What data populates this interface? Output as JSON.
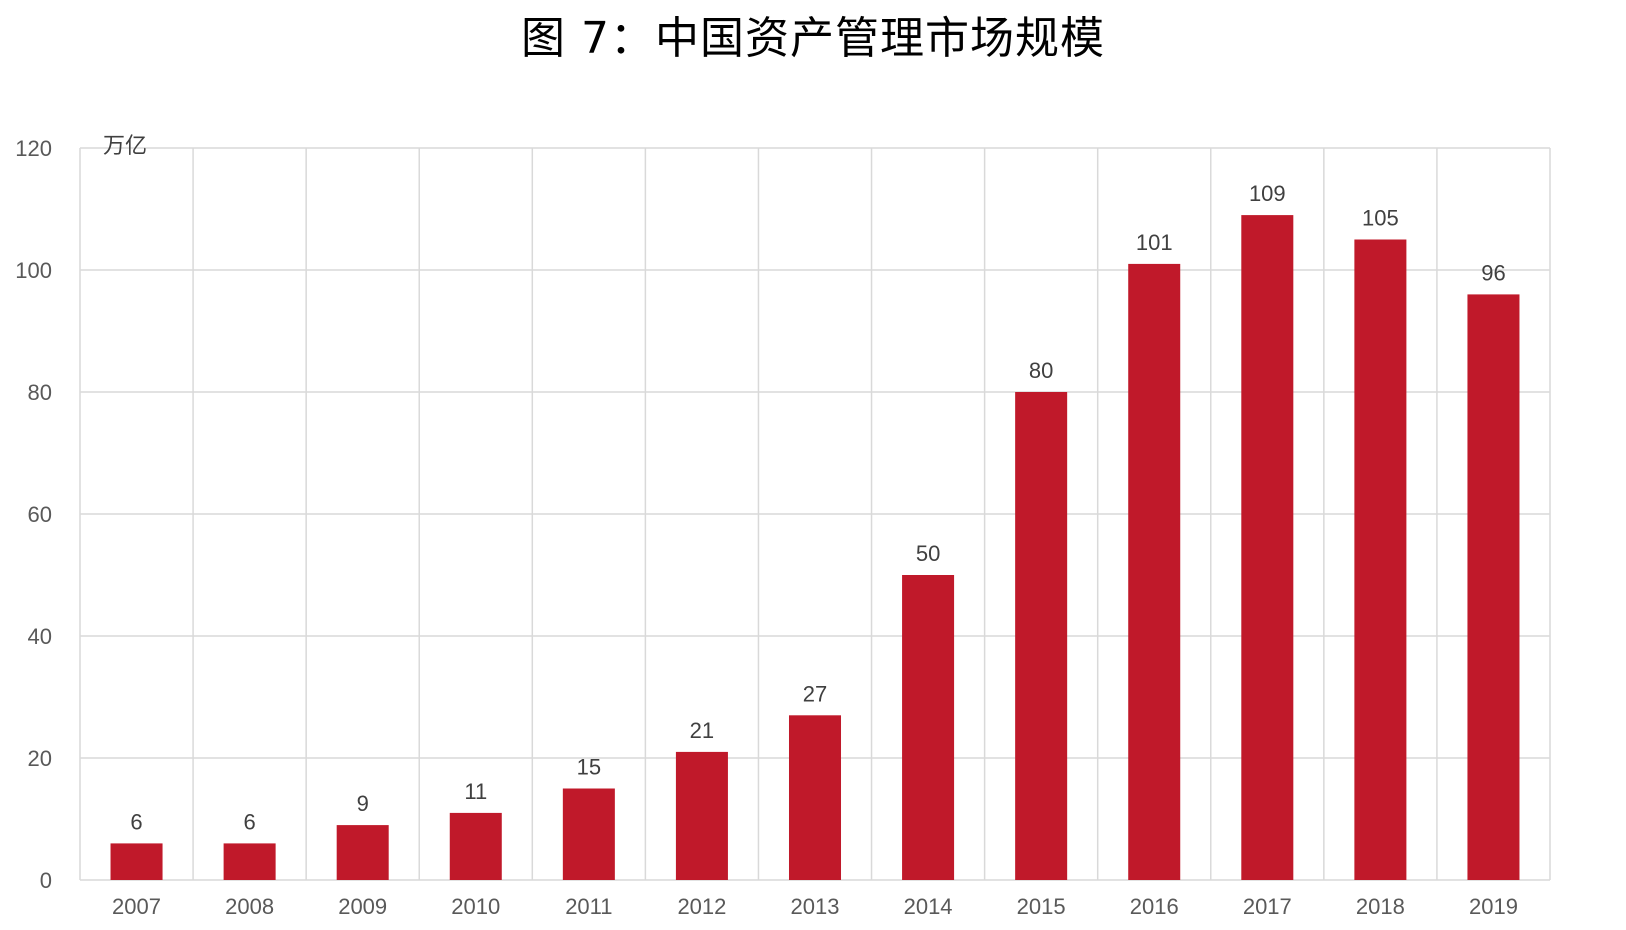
{
  "title": "图 7：中国资产管理市场规模",
  "colors": {
    "bar": "#c0192a",
    "grid": "#d9d9d9",
    "axis_text": "#595959"
  },
  "chart_data": {
    "type": "bar",
    "title": "图 7：中国资产管理市场规模",
    "unit": "万亿",
    "xlabel": "",
    "ylabel": "",
    "categories": [
      "2007",
      "2008",
      "2009",
      "2010",
      "2011",
      "2012",
      "2013",
      "2014",
      "2015",
      "2016",
      "2017",
      "2018",
      "2019"
    ],
    "values": [
      6,
      6,
      9,
      11,
      15,
      21,
      27,
      50,
      80,
      101,
      109,
      105,
      96
    ],
    "data_labels": [
      "6",
      "6",
      "9",
      "11",
      "15",
      "21",
      "27",
      "50",
      "80",
      "101",
      "109",
      "105",
      "96"
    ],
    "ylim": [
      0,
      120
    ],
    "yticks": [
      0,
      20,
      40,
      60,
      80,
      100,
      120
    ],
    "ytick_labels": [
      "0",
      "20",
      "40",
      "60",
      "80",
      "100",
      "120"
    ],
    "grid": true,
    "legend": "none"
  }
}
